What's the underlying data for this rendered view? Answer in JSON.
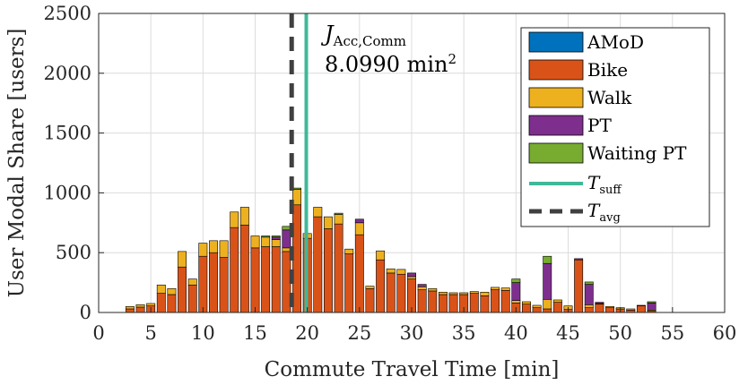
{
  "chart_data": {
    "type": "bar",
    "stacked": true,
    "xlabel": "Commute Travel Time [min]",
    "ylabel": "User Modal Share [users]",
    "xlim": [
      0,
      60
    ],
    "ylim": [
      0,
      2500
    ],
    "xticks": [
      0,
      5,
      10,
      15,
      20,
      25,
      30,
      35,
      40,
      45,
      50,
      55,
      60
    ],
    "yticks": [
      0,
      500,
      1000,
      1500,
      2000,
      2500
    ],
    "grid": true,
    "legend_position": "top-right",
    "x": [
      1,
      2,
      3,
      4,
      5,
      6,
      7,
      8,
      9,
      10,
      11,
      12,
      13,
      14,
      15,
      16,
      17,
      18,
      19,
      20,
      21,
      22,
      23,
      24,
      25,
      26,
      27,
      28,
      29,
      30,
      31,
      32,
      33,
      34,
      35,
      36,
      37,
      38,
      39,
      40,
      41,
      42,
      43,
      44,
      45,
      46,
      47,
      48,
      49,
      50,
      51,
      52,
      53,
      54,
      55,
      56,
      57,
      58,
      59
    ],
    "series": [
      {
        "name": "AMoD",
        "color": "#0072BD",
        "values": [
          0,
          0,
          0,
          0,
          0,
          0,
          0,
          0,
          0,
          0,
          0,
          0,
          0,
          0,
          0,
          0,
          0,
          0,
          0,
          0,
          0,
          0,
          0,
          0,
          0,
          0,
          0,
          0,
          0,
          0,
          0,
          0,
          0,
          0,
          0,
          0,
          0,
          0,
          0,
          0,
          0,
          0,
          0,
          0,
          0,
          0,
          0,
          0,
          0,
          0,
          0,
          0,
          0,
          0,
          0,
          0,
          0,
          0,
          0
        ]
      },
      {
        "name": "Bike",
        "color": "#D95319",
        "values": [
          0,
          0,
          30,
          45,
          55,
          160,
          150,
          380,
          230,
          470,
          500,
          460,
          710,
          730,
          540,
          550,
          550,
          510,
          900,
          620,
          800,
          700,
          740,
          490,
          650,
          200,
          440,
          330,
          320,
          280,
          190,
          180,
          150,
          150,
          150,
          160,
          140,
          190,
          185,
          80,
          70,
          40,
          30,
          85,
          25,
          440,
          40,
          70,
          40,
          30,
          20,
          55,
          10,
          0,
          0,
          0,
          0,
          0,
          0
        ]
      },
      {
        "name": "Walk",
        "color": "#EDB120",
        "values": [
          0,
          0,
          20,
          20,
          20,
          70,
          50,
          130,
          50,
          110,
          100,
          140,
          130,
          150,
          100,
          80,
          60,
          30,
          130,
          40,
          80,
          100,
          80,
          40,
          100,
          20,
          75,
          35,
          40,
          20,
          25,
          20,
          20,
          15,
          15,
          15,
          30,
          20,
          20,
          20,
          20,
          20,
          80,
          20,
          30,
          0,
          25,
          5,
          10,
          10,
          10,
          5,
          10,
          0,
          0,
          0,
          0,
          0,
          0
        ]
      },
      {
        "name": "PT",
        "color": "#7E2F8E",
        "values": [
          0,
          0,
          0,
          0,
          0,
          0,
          0,
          0,
          0,
          0,
          0,
          0,
          0,
          0,
          0,
          0,
          20,
          150,
          0,
          0,
          0,
          0,
          0,
          0,
          30,
          0,
          0,
          0,
          0,
          30,
          20,
          0,
          0,
          0,
          0,
          0,
          0,
          0,
          0,
          150,
          0,
          0,
          300,
          0,
          0,
          10,
          170,
          10,
          0,
          0,
          0,
          0,
          60,
          0,
          0,
          0,
          0,
          0,
          0
        ]
      },
      {
        "name": "Waiting PT",
        "color": "#77AC30",
        "values": [
          0,
          0,
          0,
          0,
          0,
          0,
          0,
          0,
          0,
          0,
          0,
          0,
          0,
          0,
          0,
          10,
          10,
          30,
          10,
          0,
          0,
          0,
          10,
          0,
          0,
          0,
          0,
          0,
          0,
          0,
          0,
          0,
          0,
          0,
          0,
          0,
          0,
          0,
          0,
          30,
          0,
          0,
          60,
          0,
          0,
          0,
          20,
          0,
          0,
          0,
          0,
          0,
          10,
          0,
          0,
          0,
          0,
          0,
          0
        ]
      }
    ],
    "vlines": [
      {
        "name": "T_suff",
        "x": 19.9,
        "color": "#40B89A"
      },
      {
        "name": "T_avg",
        "x": 18.5,
        "color": "#404040"
      }
    ],
    "legend": [
      "AMoD",
      "Bike",
      "Walk",
      "PT",
      "Waiting PT"
    ],
    "legend_lines": {
      "suff_base": "T",
      "suff_sub": "suff",
      "avg_base": "T",
      "avg_sub": "avg"
    },
    "annotation": {
      "line1_base": "J",
      "line1_sub": "Acc,Comm",
      "line2_value": "8.0990 min",
      "line2_sup": "2"
    }
  }
}
